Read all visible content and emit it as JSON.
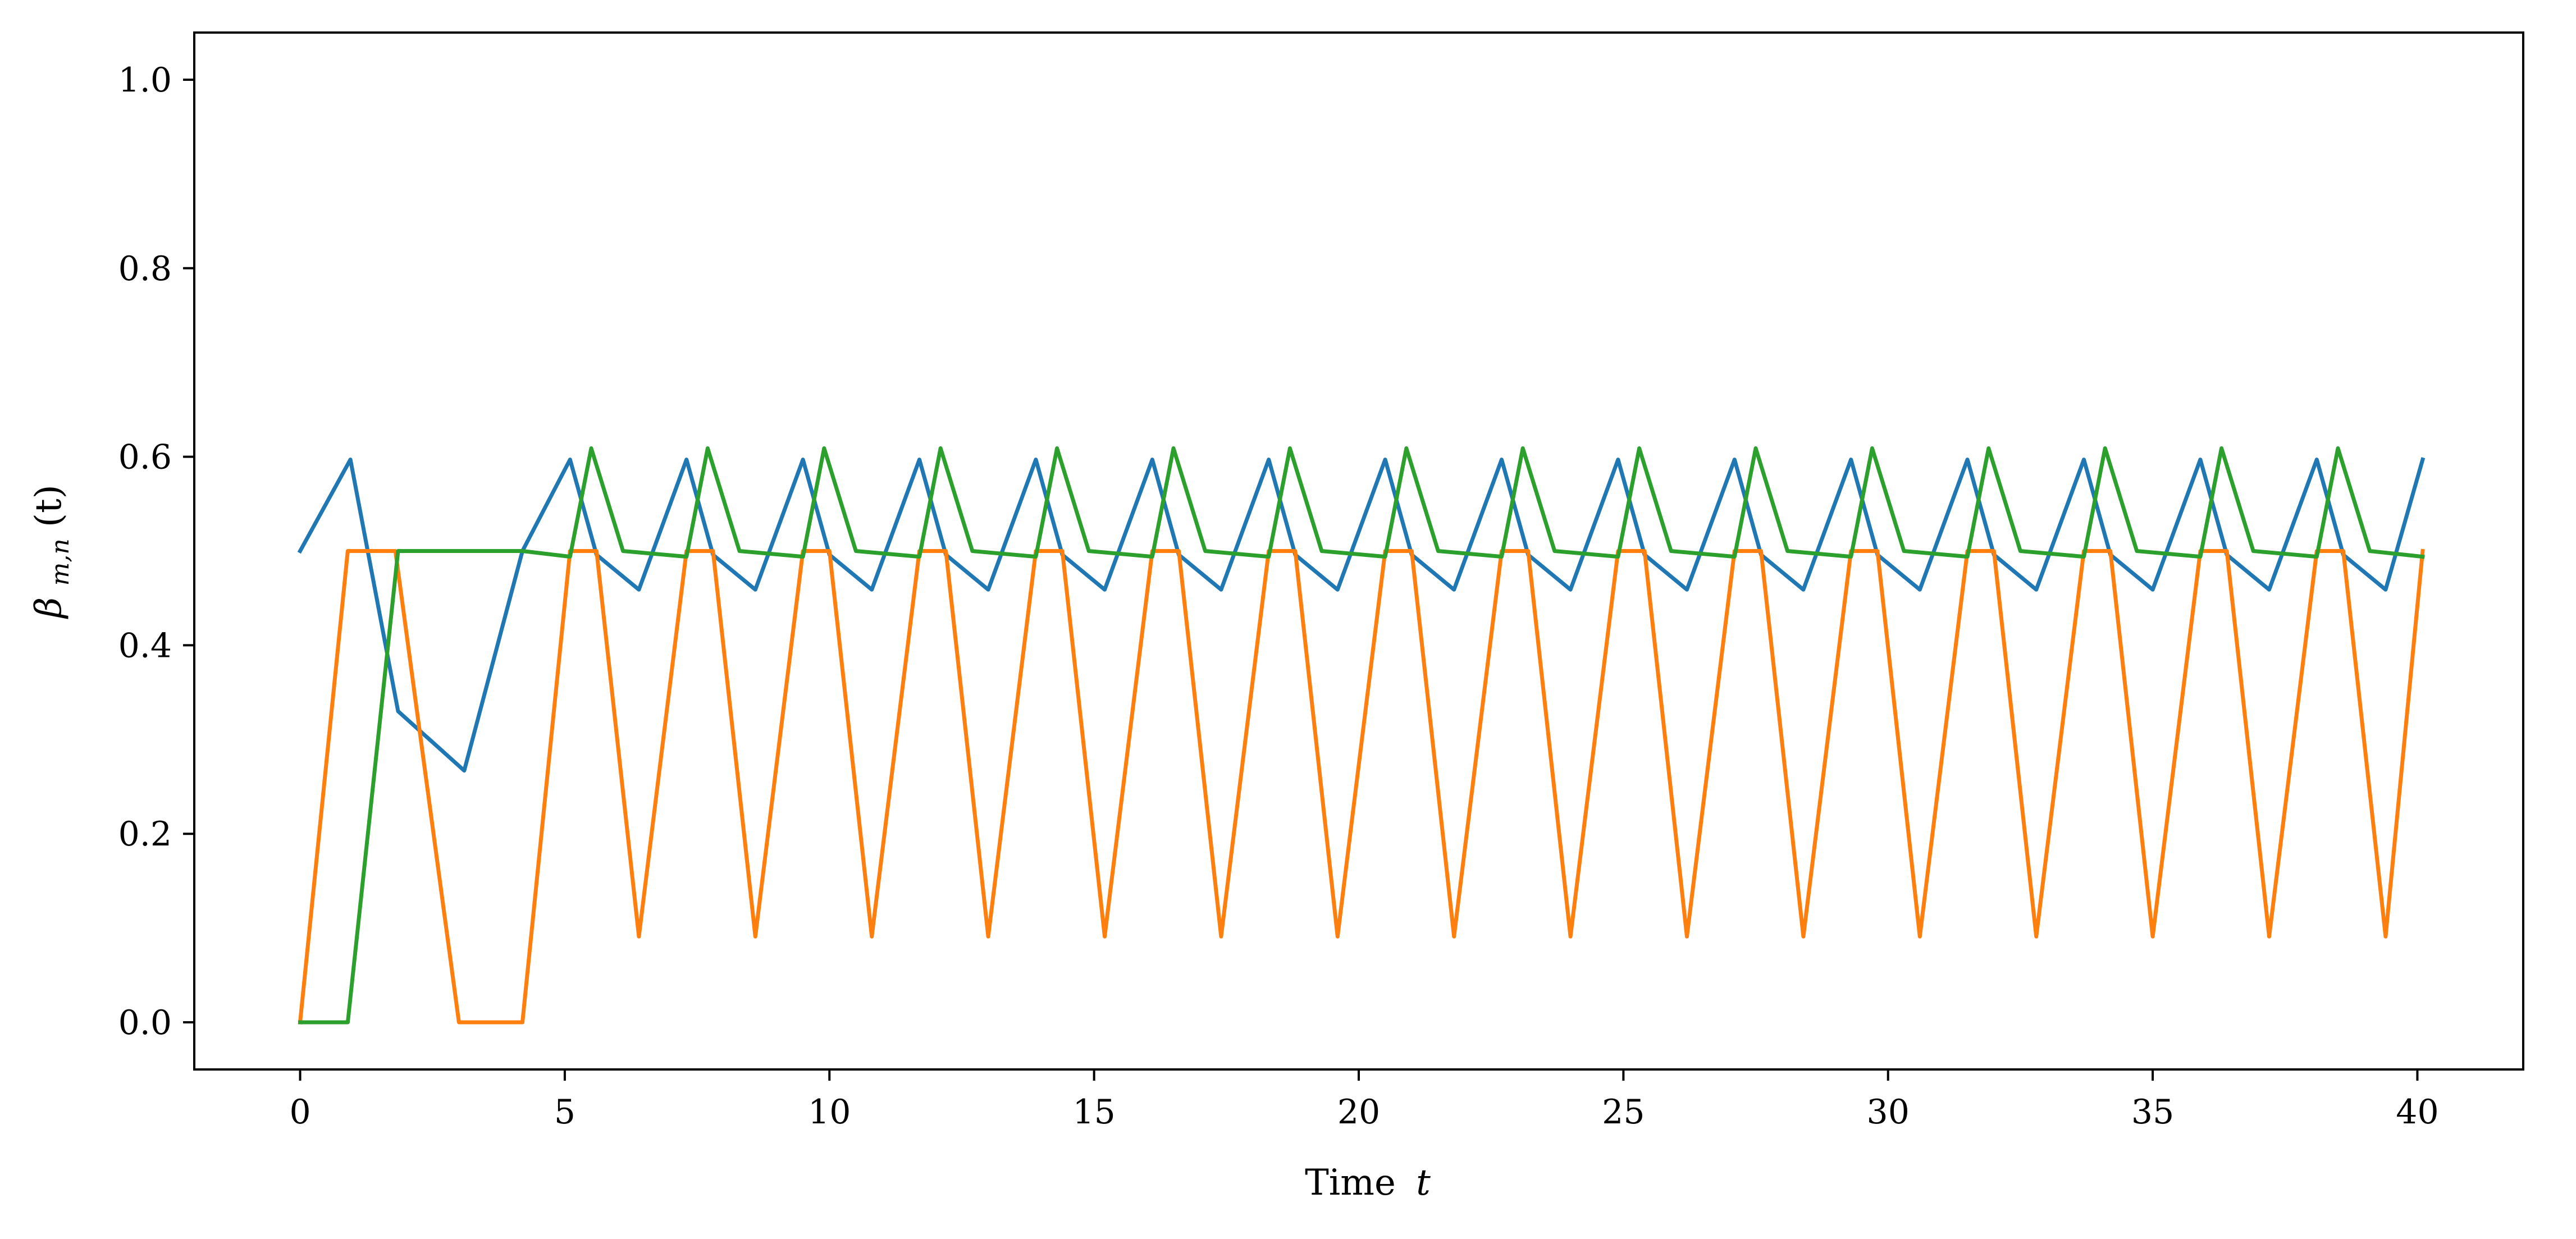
{
  "chart_data": {
    "type": "line",
    "title": "",
    "xlabel": "Time",
    "xlabel_var": "t",
    "ylabel": "β_{m,n}(t)",
    "ylabel_parts": {
      "base": "β",
      "sub": "m,n",
      "arg": "(t)"
    },
    "xlim": [
      -2,
      42
    ],
    "ylim": [
      -0.05,
      1.05
    ],
    "grid": false,
    "legend": "none",
    "xticks": [
      0,
      5,
      10,
      15,
      20,
      25,
      30,
      35,
      40
    ],
    "xtick_labels": [
      "0",
      "5",
      "10",
      "15",
      "20",
      "25",
      "30",
      "35",
      "40"
    ],
    "yticks": [
      0.0,
      0.2,
      0.4,
      0.6,
      0.8,
      1.0
    ],
    "ytick_labels": [
      "0.0",
      "0.2",
      "0.4",
      "0.6",
      "0.8",
      "1.0"
    ],
    "series": [
      {
        "name": "series-1",
        "color": "#1f77b4",
        "x": [
          0.0,
          0.95,
          1.85,
          3.1,
          4.2,
          5.1,
          5.6,
          6.4,
          7.3,
          7.8,
          8.6,
          9.5,
          10.0,
          10.8,
          11.7,
          12.2,
          13.0,
          13.9,
          14.4,
          15.2,
          16.1,
          16.6,
          17.4,
          18.3,
          18.8,
          19.6,
          20.5,
          21.0,
          21.8,
          22.7,
          23.2,
          24.0,
          24.9,
          25.4,
          26.2,
          27.1,
          27.6,
          28.4,
          29.3,
          29.8,
          30.6,
          31.5,
          32.0,
          32.8,
          33.7,
          34.2,
          35.0,
          35.9,
          36.4,
          37.2,
          38.1,
          38.6,
          39.4,
          40.1
        ],
        "y": [
          0.5,
          0.597,
          0.33,
          0.267,
          0.5,
          0.597,
          0.496,
          0.459,
          0.597,
          0.496,
          0.459,
          0.597,
          0.496,
          0.459,
          0.597,
          0.496,
          0.459,
          0.597,
          0.496,
          0.459,
          0.597,
          0.496,
          0.459,
          0.597,
          0.496,
          0.459,
          0.597,
          0.496,
          0.459,
          0.597,
          0.496,
          0.459,
          0.597,
          0.496,
          0.459,
          0.597,
          0.496,
          0.459,
          0.597,
          0.496,
          0.459,
          0.597,
          0.496,
          0.459,
          0.597,
          0.496,
          0.459,
          0.597,
          0.496,
          0.459,
          0.597,
          0.496,
          0.459,
          0.597
        ]
      },
      {
        "name": "series-2",
        "color": "#ff7f0e",
        "x": [
          0.0,
          0.9,
          1.8,
          3.0,
          4.2,
          5.1,
          5.6,
          6.4,
          7.3,
          7.8,
          8.6,
          9.5,
          10.0,
          10.8,
          11.7,
          12.2,
          13.0,
          13.9,
          14.4,
          15.2,
          16.1,
          16.6,
          17.4,
          18.3,
          18.8,
          19.6,
          20.5,
          21.0,
          21.8,
          22.7,
          23.2,
          24.0,
          24.9,
          25.4,
          26.2,
          27.1,
          27.6,
          28.4,
          29.3,
          29.8,
          30.6,
          31.5,
          32.0,
          32.8,
          33.7,
          34.2,
          35.0,
          35.9,
          36.4,
          37.2,
          38.1,
          38.6,
          39.4,
          40.1
        ],
        "y": [
          0.0,
          0.5,
          0.5,
          0.0,
          0.0,
          0.5,
          0.5,
          0.091,
          0.5,
          0.5,
          0.091,
          0.5,
          0.5,
          0.091,
          0.5,
          0.5,
          0.091,
          0.5,
          0.5,
          0.091,
          0.5,
          0.5,
          0.091,
          0.5,
          0.5,
          0.091,
          0.5,
          0.5,
          0.091,
          0.5,
          0.5,
          0.091,
          0.5,
          0.5,
          0.091,
          0.5,
          0.5,
          0.091,
          0.5,
          0.5,
          0.091,
          0.5,
          0.5,
          0.091,
          0.5,
          0.5,
          0.091,
          0.5,
          0.5,
          0.091,
          0.5,
          0.5,
          0.091,
          0.5
        ]
      },
      {
        "name": "series-3",
        "color": "#2ca02c",
        "x": [
          0.0,
          0.9,
          1.85,
          4.2,
          5.1,
          5.5,
          6.1,
          7.3,
          7.7,
          8.3,
          9.5,
          9.9,
          10.5,
          11.7,
          12.1,
          12.7,
          13.9,
          14.3,
          14.9,
          16.1,
          16.5,
          17.1,
          18.3,
          18.7,
          19.3,
          20.5,
          20.9,
          21.5,
          22.7,
          23.1,
          23.7,
          24.9,
          25.3,
          25.9,
          27.1,
          27.5,
          28.1,
          29.3,
          29.7,
          30.3,
          31.5,
          31.9,
          32.5,
          33.7,
          34.1,
          34.7,
          35.9,
          36.3,
          36.9,
          38.1,
          38.5,
          39.1,
          40.1
        ],
        "y": [
          0.0,
          0.0,
          0.5,
          0.5,
          0.494,
          0.609,
          0.5,
          0.494,
          0.609,
          0.5,
          0.494,
          0.609,
          0.5,
          0.494,
          0.609,
          0.5,
          0.494,
          0.609,
          0.5,
          0.494,
          0.609,
          0.5,
          0.494,
          0.609,
          0.5,
          0.494,
          0.609,
          0.5,
          0.494,
          0.609,
          0.5,
          0.494,
          0.609,
          0.5,
          0.494,
          0.609,
          0.5,
          0.494,
          0.609,
          0.5,
          0.494,
          0.609,
          0.5,
          0.494,
          0.609,
          0.5,
          0.494,
          0.609,
          0.5,
          0.494,
          0.609,
          0.5,
          0.494
        ]
      }
    ]
  }
}
